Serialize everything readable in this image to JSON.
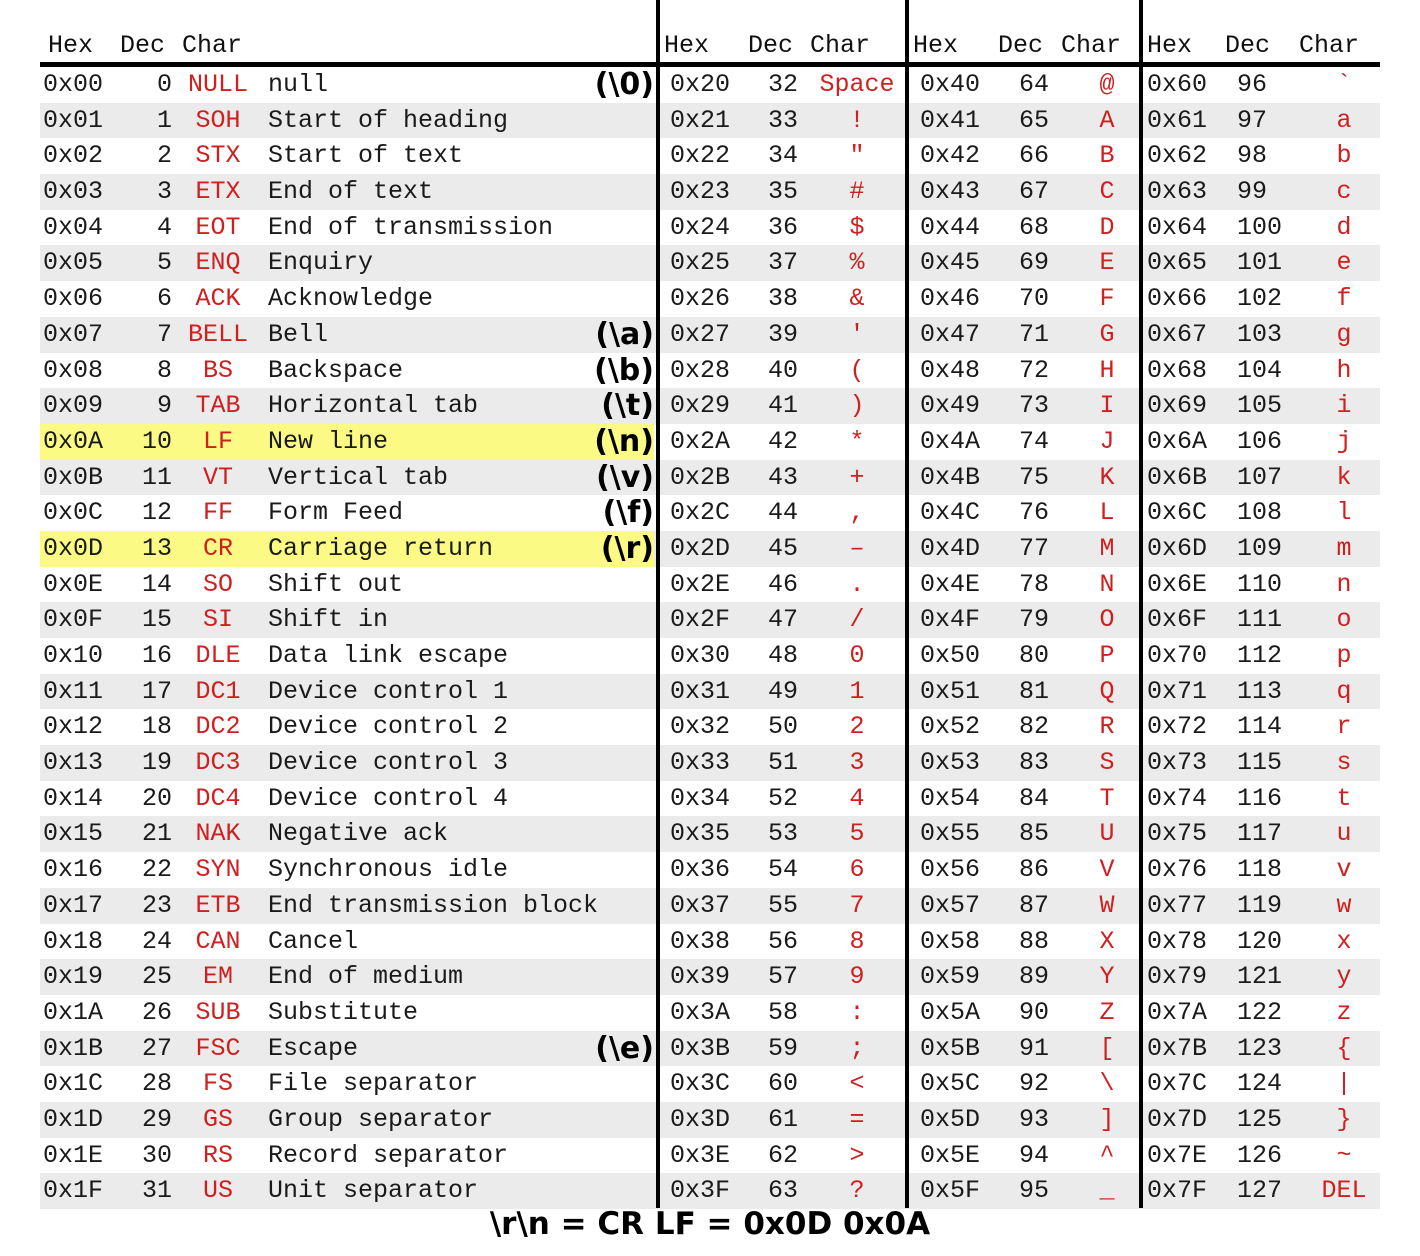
{
  "headers": [
    {
      "hex": "Hex",
      "dec": "Dec",
      "char": "Char"
    },
    {
      "hex": "Hex",
      "dec": "Dec",
      "char": "Char"
    },
    {
      "hex": "Hex",
      "dec": "Dec",
      "char": "Char"
    },
    {
      "hex": "Hex",
      "dec": "Dec",
      "char": "Char"
    }
  ],
  "control_rows": [
    {
      "hex": "0x00",
      "dec": "0",
      "abbr": "NULL",
      "desc": "null",
      "esc": "(\\0)"
    },
    {
      "hex": "0x01",
      "dec": "1",
      "abbr": "SOH",
      "desc": "Start of heading",
      "esc": ""
    },
    {
      "hex": "0x02",
      "dec": "2",
      "abbr": "STX",
      "desc": "Start of text",
      "esc": ""
    },
    {
      "hex": "0x03",
      "dec": "3",
      "abbr": "ETX",
      "desc": "End of text",
      "esc": ""
    },
    {
      "hex": "0x04",
      "dec": "4",
      "abbr": "EOT",
      "desc": "End of transmission",
      "esc": ""
    },
    {
      "hex": "0x05",
      "dec": "5",
      "abbr": "ENQ",
      "desc": "Enquiry",
      "esc": ""
    },
    {
      "hex": "0x06",
      "dec": "6",
      "abbr": "ACK",
      "desc": "Acknowledge",
      "esc": ""
    },
    {
      "hex": "0x07",
      "dec": "7",
      "abbr": "BELL",
      "desc": "Bell",
      "esc": "(\\a)"
    },
    {
      "hex": "0x08",
      "dec": "8",
      "abbr": "BS",
      "desc": "Backspace",
      "esc": "(\\b)"
    },
    {
      "hex": "0x09",
      "dec": "9",
      "abbr": "TAB",
      "desc": "Horizontal tab",
      "esc": "(\\t)"
    },
    {
      "hex": "0x0A",
      "dec": "10",
      "abbr": "LF",
      "desc": "New line",
      "esc": "(\\n)",
      "highlight": true
    },
    {
      "hex": "0x0B",
      "dec": "11",
      "abbr": "VT",
      "desc": "Vertical tab",
      "esc": "(\\v)"
    },
    {
      "hex": "0x0C",
      "dec": "12",
      "abbr": "FF",
      "desc": "Form Feed",
      "esc": "(\\f)"
    },
    {
      "hex": "0x0D",
      "dec": "13",
      "abbr": "CR",
      "desc": "Carriage return",
      "esc": "(\\r)",
      "highlight": true
    },
    {
      "hex": "0x0E",
      "dec": "14",
      "abbr": "SO",
      "desc": "Shift out",
      "esc": ""
    },
    {
      "hex": "0x0F",
      "dec": "15",
      "abbr": "SI",
      "desc": "Shift in",
      "esc": ""
    },
    {
      "hex": "0x10",
      "dec": "16",
      "abbr": "DLE",
      "desc": "Data link escape",
      "esc": ""
    },
    {
      "hex": "0x11",
      "dec": "17",
      "abbr": "DC1",
      "desc": "Device control 1",
      "esc": ""
    },
    {
      "hex": "0x12",
      "dec": "18",
      "abbr": "DC2",
      "desc": "Device control 2",
      "esc": ""
    },
    {
      "hex": "0x13",
      "dec": "19",
      "abbr": "DC3",
      "desc": "Device control 3",
      "esc": ""
    },
    {
      "hex": "0x14",
      "dec": "20",
      "abbr": "DC4",
      "desc": "Device control 4",
      "esc": ""
    },
    {
      "hex": "0x15",
      "dec": "21",
      "abbr": "NAK",
      "desc": "Negative ack",
      "esc": ""
    },
    {
      "hex": "0x16",
      "dec": "22",
      "abbr": "SYN",
      "desc": "Synchronous idle",
      "esc": ""
    },
    {
      "hex": "0x17",
      "dec": "23",
      "abbr": "ETB",
      "desc": "End transmission block",
      "esc": ""
    },
    {
      "hex": "0x18",
      "dec": "24",
      "abbr": "CAN",
      "desc": "Cancel",
      "esc": ""
    },
    {
      "hex": "0x19",
      "dec": "25",
      "abbr": "EM",
      "desc": "End of medium",
      "esc": ""
    },
    {
      "hex": "0x1A",
      "dec": "26",
      "abbr": "SUB",
      "desc": "Substitute",
      "esc": ""
    },
    {
      "hex": "0x1B",
      "dec": "27",
      "abbr": "FSC",
      "desc": "Escape",
      "esc": "(\\e)"
    },
    {
      "hex": "0x1C",
      "dec": "28",
      "abbr": "FS",
      "desc": "File separator",
      "esc": ""
    },
    {
      "hex": "0x1D",
      "dec": "29",
      "abbr": "GS",
      "desc": "Group separator",
      "esc": ""
    },
    {
      "hex": "0x1E",
      "dec": "30",
      "abbr": "RS",
      "desc": "Record separator",
      "esc": ""
    },
    {
      "hex": "0x1F",
      "dec": "31",
      "abbr": "US",
      "desc": "Unit separator",
      "esc": ""
    }
  ],
  "col2": [
    [
      "0x20",
      "32",
      "Space"
    ],
    [
      "0x21",
      "33",
      "!"
    ],
    [
      "0x22",
      "34",
      "\""
    ],
    [
      "0x23",
      "35",
      "#"
    ],
    [
      "0x24",
      "36",
      "$"
    ],
    [
      "0x25",
      "37",
      "%"
    ],
    [
      "0x26",
      "38",
      "&"
    ],
    [
      "0x27",
      "39",
      "'"
    ],
    [
      "0x28",
      "40",
      "("
    ],
    [
      "0x29",
      "41",
      ")"
    ],
    [
      "0x2A",
      "42",
      "*"
    ],
    [
      "0x2B",
      "43",
      "+"
    ],
    [
      "0x2C",
      "44",
      ","
    ],
    [
      "0x2D",
      "45",
      "–"
    ],
    [
      "0x2E",
      "46",
      "."
    ],
    [
      "0x2F",
      "47",
      "/"
    ],
    [
      "0x30",
      "48",
      "0"
    ],
    [
      "0x31",
      "49",
      "1"
    ],
    [
      "0x32",
      "50",
      "2"
    ],
    [
      "0x33",
      "51",
      "3"
    ],
    [
      "0x34",
      "52",
      "4"
    ],
    [
      "0x35",
      "53",
      "5"
    ],
    [
      "0x36",
      "54",
      "6"
    ],
    [
      "0x37",
      "55",
      "7"
    ],
    [
      "0x38",
      "56",
      "8"
    ],
    [
      "0x39",
      "57",
      "9"
    ],
    [
      "0x3A",
      "58",
      ":"
    ],
    [
      "0x3B",
      "59",
      ";"
    ],
    [
      "0x3C",
      "60",
      "<"
    ],
    [
      "0x3D",
      "61",
      "="
    ],
    [
      "0x3E",
      "62",
      ">"
    ],
    [
      "0x3F",
      "63",
      "?"
    ]
  ],
  "col3": [
    [
      "0x40",
      "64",
      "@"
    ],
    [
      "0x41",
      "65",
      "A"
    ],
    [
      "0x42",
      "66",
      "B"
    ],
    [
      "0x43",
      "67",
      "C"
    ],
    [
      "0x44",
      "68",
      "D"
    ],
    [
      "0x45",
      "69",
      "E"
    ],
    [
      "0x46",
      "70",
      "F"
    ],
    [
      "0x47",
      "71",
      "G"
    ],
    [
      "0x48",
      "72",
      "H"
    ],
    [
      "0x49",
      "73",
      "I"
    ],
    [
      "0x4A",
      "74",
      "J"
    ],
    [
      "0x4B",
      "75",
      "K"
    ],
    [
      "0x4C",
      "76",
      "L"
    ],
    [
      "0x4D",
      "77",
      "M"
    ],
    [
      "0x4E",
      "78",
      "N"
    ],
    [
      "0x4F",
      "79",
      "O"
    ],
    [
      "0x50",
      "80",
      "P"
    ],
    [
      "0x51",
      "81",
      "Q"
    ],
    [
      "0x52",
      "82",
      "R"
    ],
    [
      "0x53",
      "83",
      "S"
    ],
    [
      "0x54",
      "84",
      "T"
    ],
    [
      "0x55",
      "85",
      "U"
    ],
    [
      "0x56",
      "86",
      "V"
    ],
    [
      "0x57",
      "87",
      "W"
    ],
    [
      "0x58",
      "88",
      "X"
    ],
    [
      "0x59",
      "89",
      "Y"
    ],
    [
      "0x5A",
      "90",
      "Z"
    ],
    [
      "0x5B",
      "91",
      "["
    ],
    [
      "0x5C",
      "92",
      "\\"
    ],
    [
      "0x5D",
      "93",
      "]"
    ],
    [
      "0x5E",
      "94",
      "^"
    ],
    [
      "0x5F",
      "95",
      "_"
    ]
  ],
  "col4": [
    [
      "0x60",
      "96",
      "`"
    ],
    [
      "0x61",
      "97",
      "a"
    ],
    [
      "0x62",
      "98",
      "b"
    ],
    [
      "0x63",
      "99",
      "c"
    ],
    [
      "0x64",
      "100",
      "d"
    ],
    [
      "0x65",
      "101",
      "e"
    ],
    [
      "0x66",
      "102",
      "f"
    ],
    [
      "0x67",
      "103",
      "g"
    ],
    [
      "0x68",
      "104",
      "h"
    ],
    [
      "0x69",
      "105",
      "i"
    ],
    [
      "0x6A",
      "106",
      "j"
    ],
    [
      "0x6B",
      "107",
      "k"
    ],
    [
      "0x6C",
      "108",
      "l"
    ],
    [
      "0x6D",
      "109",
      "m"
    ],
    [
      "0x6E",
      "110",
      "n"
    ],
    [
      "0x6F",
      "111",
      "o"
    ],
    [
      "0x70",
      "112",
      "p"
    ],
    [
      "0x71",
      "113",
      "q"
    ],
    [
      "0x72",
      "114",
      "r"
    ],
    [
      "0x73",
      "115",
      "s"
    ],
    [
      "0x74",
      "116",
      "t"
    ],
    [
      "0x75",
      "117",
      "u"
    ],
    [
      "0x76",
      "118",
      "v"
    ],
    [
      "0x77",
      "119",
      "w"
    ],
    [
      "0x78",
      "120",
      "x"
    ],
    [
      "0x79",
      "121",
      "y"
    ],
    [
      "0x7A",
      "122",
      "z"
    ],
    [
      "0x7B",
      "123",
      "{"
    ],
    [
      "0x7C",
      "124",
      "|"
    ],
    [
      "0x7D",
      "125",
      "}"
    ],
    [
      "0x7E",
      "126",
      "~"
    ],
    [
      "0x7F",
      "127",
      "DEL"
    ]
  ],
  "footer": "\\r\\n = CR LF = 0x0D 0x0A",
  "colors": {
    "char_red": "#cf1f1f",
    "highlight": "#fafa84",
    "stripe": "#ebebeb"
  }
}
